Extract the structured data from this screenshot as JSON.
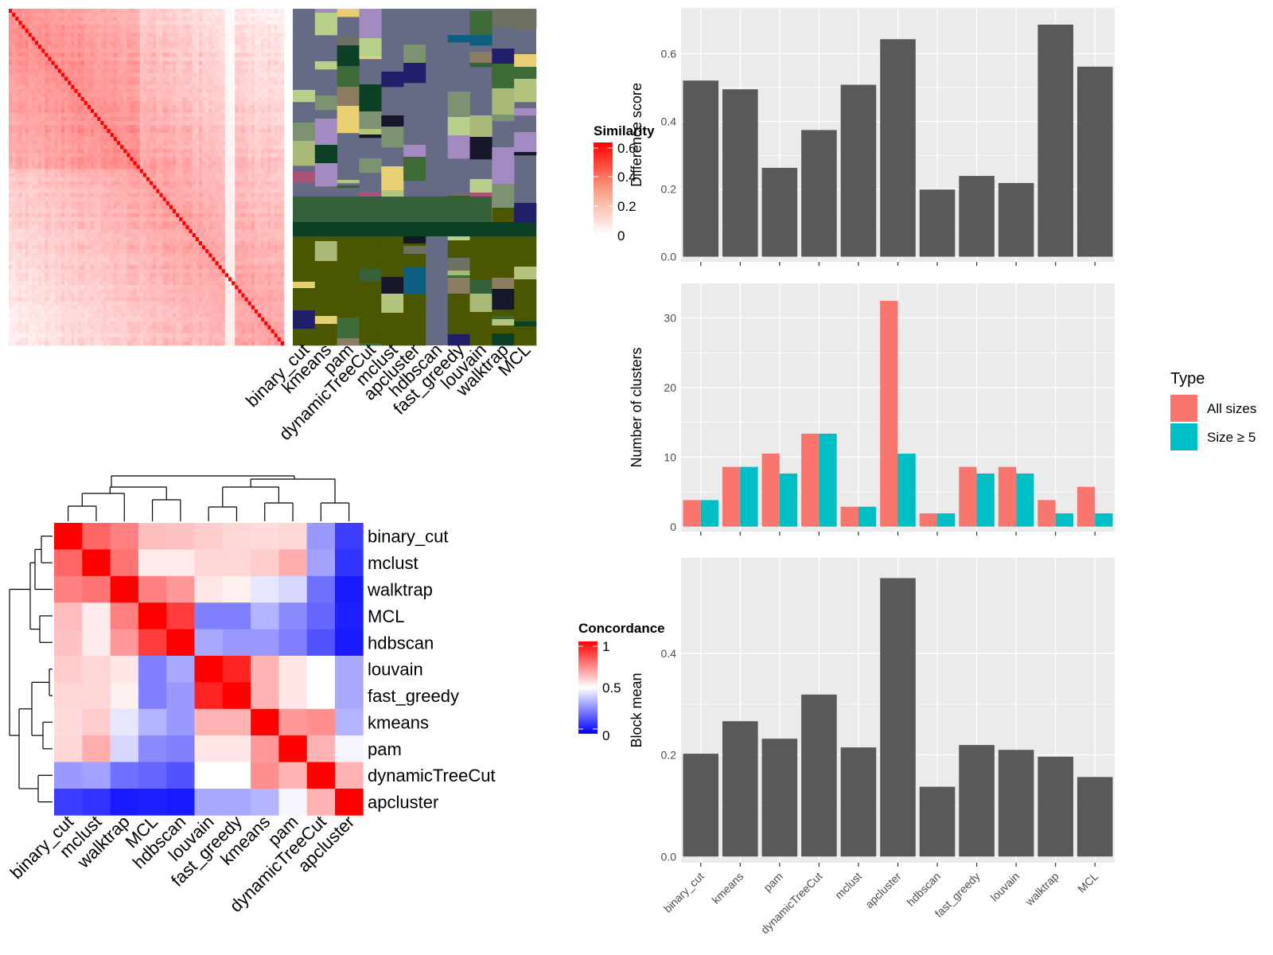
{
  "methods": [
    "binary_cut",
    "kmeans",
    "pam",
    "dynamicTreeCut",
    "mclust",
    "apcluster",
    "hdbscan",
    "fast_greedy",
    "louvain",
    "walktrap",
    "MCL"
  ],
  "top_heatmap": {
    "legend_title": "Similarity",
    "legend_ticks": [
      "0.6",
      "0.4",
      "0.2",
      "0"
    ],
    "column_labels": [
      "binary_cut",
      "kmeans",
      "pam",
      "dynamicTreeCut",
      "mclust",
      "apcluster",
      "hdbscan",
      "fast_greedy",
      "louvain",
      "walktrap",
      "MCL"
    ]
  },
  "concordance_heatmap": {
    "legend_title": "Concordance",
    "legend_ticks": [
      "1",
      "0.5",
      "0"
    ],
    "row_labels": [
      "binary_cut",
      "mclust",
      "walktrap",
      "MCL",
      "hdbscan",
      "louvain",
      "fast_greedy",
      "kmeans",
      "pam",
      "dynamicTreeCut",
      "apcluster"
    ],
    "col_labels": [
      "binary_cut",
      "mclust",
      "walktrap",
      "MCL",
      "hdbscan",
      "louvain",
      "fast_greedy",
      "kmeans",
      "pam",
      "dynamicTreeCut",
      "apcluster"
    ]
  },
  "chart_data": [
    {
      "type": "bar",
      "ylabel": "Difference score",
      "categories": [
        "binary_cut",
        "kmeans",
        "pam",
        "dynamicTreeCut",
        "mclust",
        "apcluster",
        "hdbscan",
        "fast_greedy",
        "louvain",
        "walktrap",
        "MCL"
      ],
      "values": [
        0.545,
        0.518,
        0.275,
        0.392,
        0.532,
        0.673,
        0.208,
        0.25,
        0.228,
        0.718,
        0.588
      ],
      "ylim": [
        0,
        0.75
      ],
      "yticks": [
        "0.0",
        "0.2",
        "0.4",
        "0.6"
      ],
      "bar_color": "#595959"
    },
    {
      "type": "bar",
      "ylabel": "Number of clusters",
      "categories": [
        "binary_cut",
        "kmeans",
        "pam",
        "dynamicTreeCut",
        "mclust",
        "apcluster",
        "hdbscan",
        "fast_greedy",
        "louvain",
        "walktrap",
        "MCL"
      ],
      "series": [
        {
          "name": "All sizes",
          "color": "#F8766D",
          "values": [
            4,
            9,
            11,
            14,
            3,
            34,
            2,
            9,
            9,
            4,
            6
          ]
        },
        {
          "name": "Size ≥ 5",
          "color": "#00BFC4",
          "values": [
            4,
            9,
            8,
            14,
            3,
            11,
            2,
            8,
            8,
            2,
            2
          ]
        }
      ],
      "ylim": [
        0,
        35.7
      ],
      "yticks": [
        "0",
        "10",
        "20",
        "30"
      ],
      "legend_title": "Type",
      "legend_position": "right"
    },
    {
      "type": "bar",
      "ylabel": "Block mean",
      "categories": [
        "binary_cut",
        "kmeans",
        "pam",
        "dynamicTreeCut",
        "mclust",
        "apcluster",
        "hdbscan",
        "fast_greedy",
        "louvain",
        "walktrap",
        "MCL"
      ],
      "values": [
        0.212,
        0.279,
        0.243,
        0.334,
        0.225,
        0.574,
        0.144,
        0.23,
        0.22,
        0.206,
        0.164
      ],
      "ylim": [
        0,
        0.6
      ],
      "yticks": [
        "0.0",
        "0.2",
        "0.4"
      ],
      "bar_color": "#595959"
    },
    {
      "type": "heatmap",
      "rows": [
        "binary_cut",
        "mclust",
        "walktrap",
        "MCL",
        "hdbscan",
        "louvain",
        "fast_greedy",
        "kmeans",
        "pam",
        "dynamicTreeCut",
        "apcluster"
      ],
      "cols": [
        "binary_cut",
        "mclust",
        "walktrap",
        "MCL",
        "hdbscan",
        "louvain",
        "fast_greedy",
        "kmeans",
        "pam",
        "dynamicTreeCut",
        "apcluster"
      ],
      "values": [
        [
          1.0,
          0.8,
          0.75,
          0.63,
          0.62,
          0.6,
          0.58,
          0.57,
          0.58,
          0.3,
          0.12
        ],
        [
          0.8,
          1.0,
          0.77,
          0.54,
          0.54,
          0.58,
          0.58,
          0.6,
          0.66,
          0.32,
          0.1
        ],
        [
          0.75,
          0.77,
          1.0,
          0.75,
          0.7,
          0.55,
          0.53,
          0.45,
          0.42,
          0.22,
          0.05
        ],
        [
          0.63,
          0.54,
          0.75,
          1.0,
          0.88,
          0.25,
          0.25,
          0.35,
          0.27,
          0.2,
          0.06
        ],
        [
          0.62,
          0.54,
          0.7,
          0.88,
          1.0,
          0.33,
          0.3,
          0.3,
          0.25,
          0.16,
          0.05
        ],
        [
          0.6,
          0.58,
          0.55,
          0.25,
          0.33,
          1.0,
          0.93,
          0.65,
          0.55,
          0.5,
          0.33
        ],
        [
          0.58,
          0.58,
          0.53,
          0.25,
          0.3,
          0.93,
          1.0,
          0.65,
          0.55,
          0.5,
          0.33
        ],
        [
          0.57,
          0.6,
          0.45,
          0.35,
          0.3,
          0.65,
          0.65,
          1.0,
          0.7,
          0.72,
          0.35
        ],
        [
          0.58,
          0.66,
          0.42,
          0.27,
          0.25,
          0.55,
          0.55,
          0.7,
          1.0,
          0.65,
          0.48
        ],
        [
          0.3,
          0.32,
          0.22,
          0.2,
          0.16,
          0.5,
          0.5,
          0.72,
          0.65,
          1.0,
          0.65
        ],
        [
          0.12,
          0.1,
          0.05,
          0.06,
          0.05,
          0.33,
          0.33,
          0.35,
          0.48,
          0.65,
          1.0
        ]
      ],
      "legend_title": "Concordance",
      "range": [
        0,
        1
      ]
    }
  ]
}
